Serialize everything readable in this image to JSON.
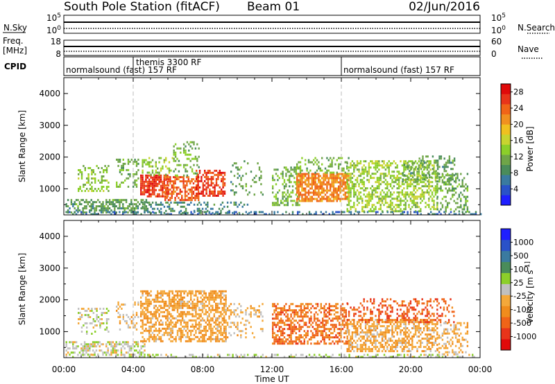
{
  "header": {
    "station": "South Pole Station (fitACF)",
    "beam": "Beam 01",
    "date": "02/Jun/2016"
  },
  "top_panels": {
    "nsky_label": "N.Sky",
    "nsky_ticks": [
      "10^5",
      "10^0"
    ],
    "nsearch_label": "N.Search",
    "nsearch_ticks": [
      "10^5",
      "10^0"
    ],
    "freq_label": "Freq.",
    "freq_unit": "[MHz]",
    "freq_ticks": [
      "18",
      "8"
    ],
    "nave_label": "Nave",
    "nave_ticks": [
      "60",
      "0"
    ],
    "cpid_label": "CPID",
    "cpid_segments": [
      {
        "label": "normalsound (fast) 157 RF",
        "start_hour": 0,
        "end_hour": 4
      },
      {
        "label": "themis 3300 RF",
        "start_hour": 4,
        "end_hour": 16
      },
      {
        "label": "normalsound (fast) 157 RF",
        "start_hour": 16,
        "end_hour": 24
      }
    ]
  },
  "chart_data": [
    {
      "type": "heatmap",
      "name": "power",
      "ylabel": "Slant Range [km]",
      "xlabel": "",
      "x_ticks": [
        "00:00",
        "04:00",
        "08:00",
        "12:00",
        "16:00",
        "20:00",
        "00:00"
      ],
      "x_tick_hours": [
        0,
        4,
        8,
        12,
        16,
        20,
        24
      ],
      "ylim": [
        180,
        4500
      ],
      "y_ticks": [
        1000,
        2000,
        3000,
        4000
      ],
      "colorbar": {
        "label": "Power [dB]",
        "range": [
          0,
          30
        ],
        "ticks": [
          "4",
          "8",
          "12",
          "16",
          "20",
          "24",
          "28"
        ],
        "colors": [
          "#1f1fff",
          "#2a52c8",
          "#3a7aa0",
          "#4a8c5a",
          "#6fa548",
          "#8ccf2a",
          "#c8d430",
          "#f0c020",
          "#f09020",
          "#f06418",
          "#e8341a",
          "#e00a0a"
        ]
      },
      "echo_regions": [
        {
          "h0": 0.1,
          "h1": 4.8,
          "r0": 250,
          "r1": 680,
          "value": 10,
          "density": 0.55
        },
        {
          "h0": 0.8,
          "h1": 2.6,
          "r0": 950,
          "r1": 1750,
          "value": 13,
          "density": 0.35
        },
        {
          "h0": 3.0,
          "h1": 4.3,
          "r0": 1050,
          "r1": 1950,
          "value": 12,
          "density": 0.3
        },
        {
          "h0": 4.4,
          "h1": 6.0,
          "r0": 750,
          "r1": 1450,
          "value": 26,
          "density": 0.75
        },
        {
          "h0": 4.4,
          "h1": 6.3,
          "r0": 1450,
          "r1": 2000,
          "value": 14,
          "density": 0.35
        },
        {
          "h0": 5.8,
          "h1": 7.8,
          "r0": 650,
          "r1": 1400,
          "value": 24,
          "density": 0.55
        },
        {
          "h0": 6.3,
          "h1": 7.8,
          "r0": 1400,
          "r1": 2500,
          "value": 12,
          "density": 0.3
        },
        {
          "h0": 7.6,
          "h1": 9.3,
          "r0": 750,
          "r1": 1600,
          "value": 26,
          "density": 0.6
        },
        {
          "h0": 4.5,
          "h1": 10.8,
          "r0": 250,
          "r1": 600,
          "value": 8,
          "density": 0.3
        },
        {
          "h0": 9.6,
          "h1": 11.6,
          "r0": 800,
          "r1": 1900,
          "value": 10,
          "density": 0.2
        },
        {
          "h0": 12.0,
          "h1": 13.6,
          "r0": 500,
          "r1": 1700,
          "value": 12,
          "density": 0.4
        },
        {
          "h0": 13.4,
          "h1": 16.4,
          "r0": 600,
          "r1": 1500,
          "value": 22,
          "density": 0.75
        },
        {
          "h0": 13.4,
          "h1": 16.4,
          "r0": 1500,
          "r1": 2000,
          "value": 12,
          "density": 0.3
        },
        {
          "h0": 16.3,
          "h1": 21.5,
          "r0": 300,
          "r1": 1900,
          "value": 14,
          "density": 0.5
        },
        {
          "h0": 19.5,
          "h1": 22.5,
          "r0": 1200,
          "r1": 2050,
          "value": 10,
          "density": 0.3
        },
        {
          "h0": 21.5,
          "h1": 23.3,
          "r0": 300,
          "r1": 1500,
          "value": 11,
          "density": 0.35
        },
        {
          "h0": 0.0,
          "h1": 24.0,
          "r0": 180,
          "r1": 300,
          "value": 6,
          "density": 0.35
        }
      ]
    },
    {
      "type": "heatmap",
      "name": "velocity",
      "ylabel": "Slant Range [km]",
      "xlabel": "Time UT",
      "x_ticks": [
        "00:00",
        "04:00",
        "08:00",
        "12:00",
        "16:00",
        "20:00",
        "00:00"
      ],
      "x_tick_hours": [
        0,
        4,
        8,
        12,
        16,
        20,
        24
      ],
      "ylim": [
        180,
        4500
      ],
      "y_ticks": [
        1000,
        2000,
        3000,
        4000
      ],
      "colorbar": {
        "label": "Velocity [m s^-1]",
        "range": [
          -1200,
          1200
        ],
        "ticks": [
          "1000",
          "500",
          "100",
          "25",
          "-25",
          "-100",
          "-500",
          "-1000"
        ],
        "colors": [
          "#e00a0a",
          "#e8341a",
          "#f06418",
          "#f08c1c",
          "#f4a83a",
          "#c0c0c0",
          "#8ccf2a",
          "#4a8c5a",
          "#3a7aa0",
          "#2a52c8",
          "#1f1fff"
        ]
      },
      "echo_regions": [
        {
          "h0": 0.1,
          "h1": 4.8,
          "r0": 250,
          "r1": 700,
          "value": 30,
          "density": 0.5
        },
        {
          "h0": 0.8,
          "h1": 2.6,
          "r0": 950,
          "r1": 1750,
          "value": 60,
          "density": 0.3
        },
        {
          "h0": 3.0,
          "h1": 4.3,
          "r0": 1050,
          "r1": 1950,
          "value": -150,
          "density": 0.3
        },
        {
          "h0": 4.4,
          "h1": 9.3,
          "r0": 700,
          "r1": 2300,
          "value": -300,
          "density": 0.6
        },
        {
          "h0": 9.3,
          "h1": 11.5,
          "r0": 800,
          "r1": 1900,
          "value": -200,
          "density": 0.25
        },
        {
          "h0": 12.0,
          "h1": 16.4,
          "r0": 600,
          "r1": 1900,
          "value": -600,
          "density": 0.55
        },
        {
          "h0": 16.3,
          "h1": 21.5,
          "r0": 400,
          "r1": 1400,
          "value": -250,
          "density": 0.55
        },
        {
          "h0": 16.3,
          "h1": 22.5,
          "r0": 1300,
          "r1": 2050,
          "value": -700,
          "density": 0.35
        },
        {
          "h0": 21.5,
          "h1": 23.3,
          "r0": 300,
          "r1": 1300,
          "value": -200,
          "density": 0.35
        },
        {
          "h0": 0.0,
          "h1": 24.0,
          "r0": 180,
          "r1": 300,
          "value": 80,
          "density": 0.35
        }
      ]
    }
  ]
}
